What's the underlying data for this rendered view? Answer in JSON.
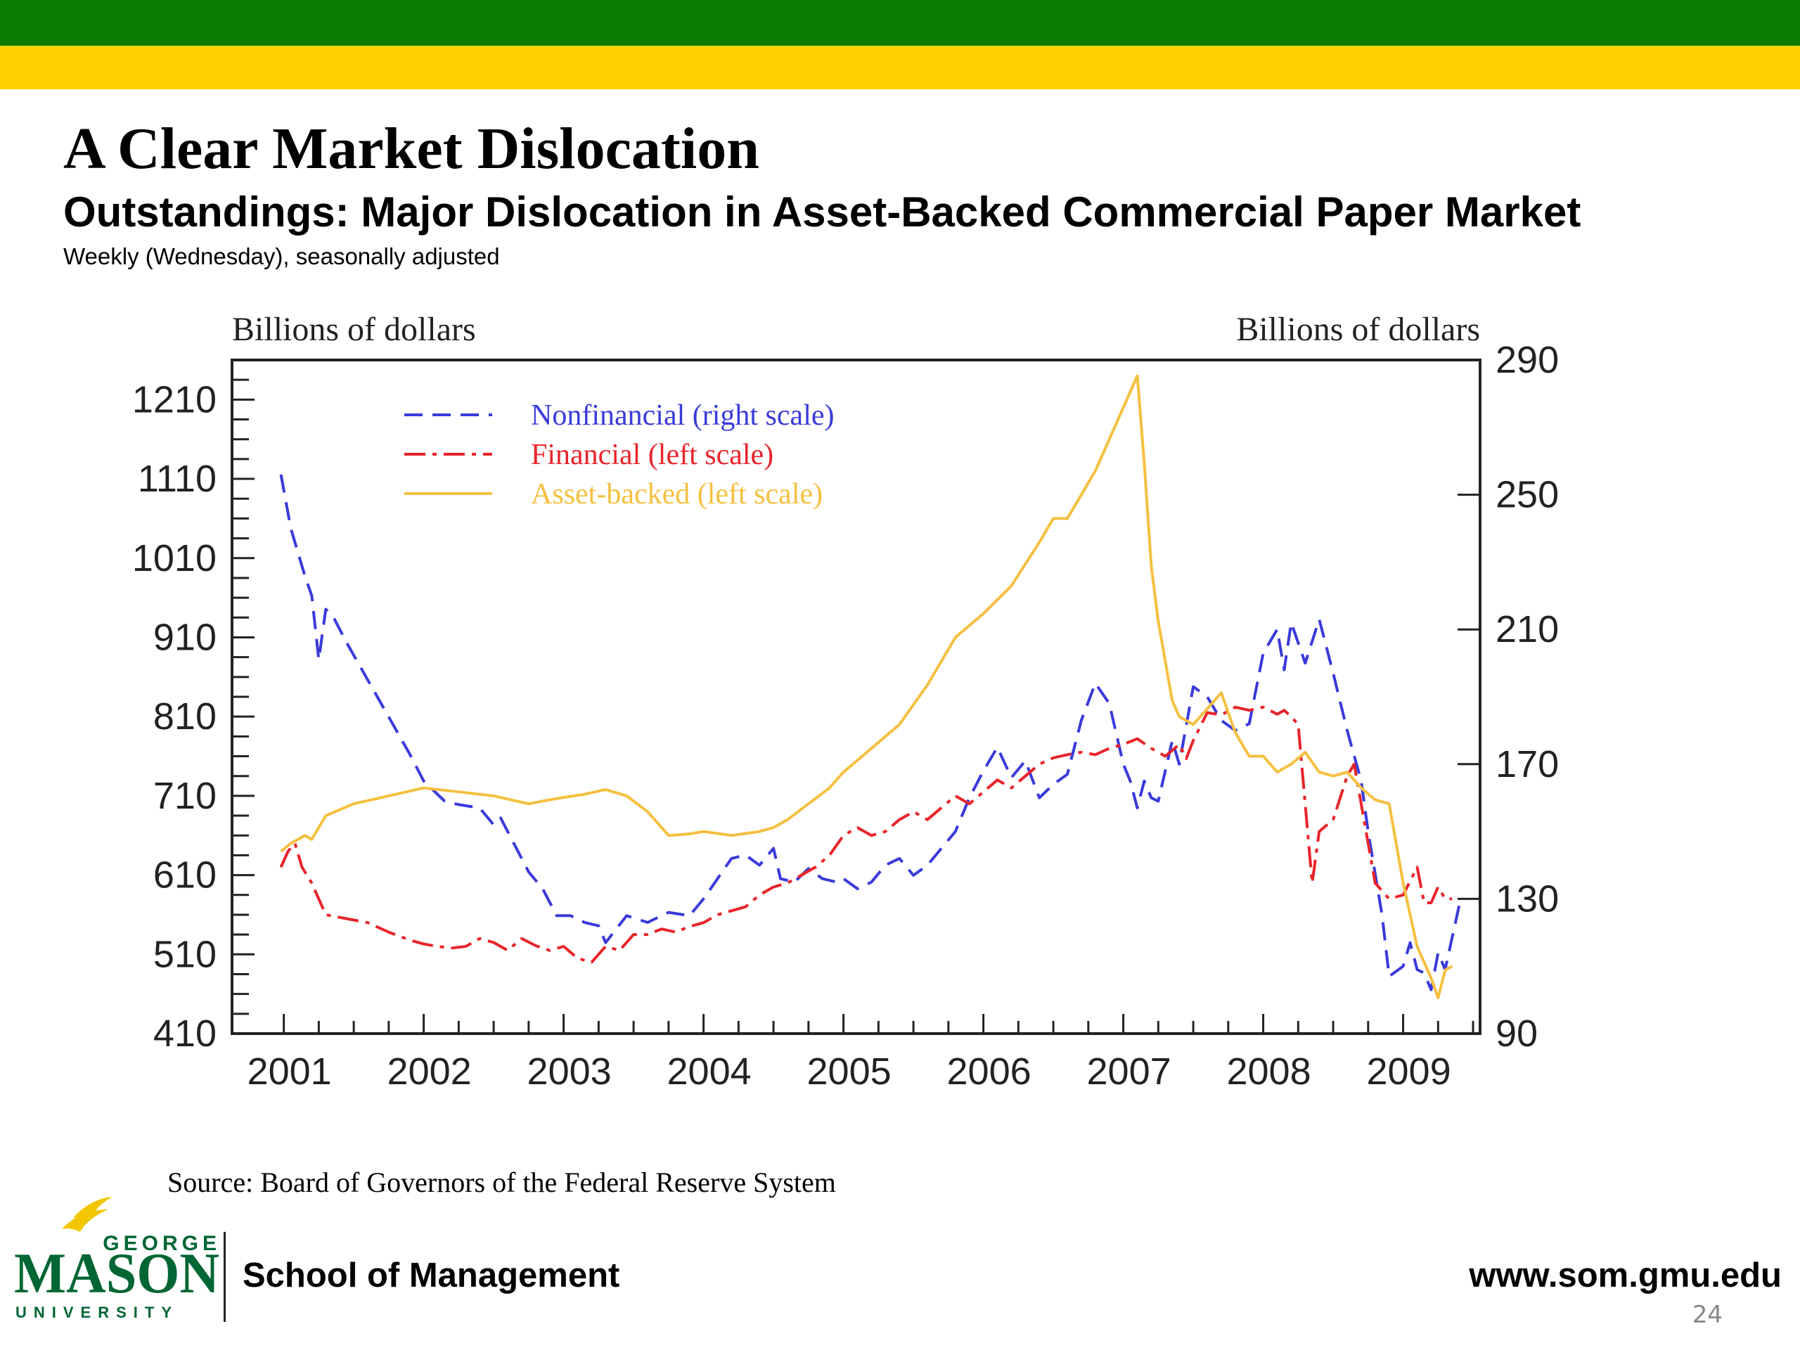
{
  "slide": {
    "title": "A Clear Market Dislocation",
    "source": "Source: Board of Governors of the Federal Reserve System",
    "school": "School of Management",
    "website": "www.som.gmu.edu",
    "page_number": "24",
    "logo": {
      "top": "GEORGE",
      "main": "MASON",
      "bottom": "UNIVERSITY"
    },
    "colors": {
      "band_green": "#0b7d03",
      "band_gold": "#ffd200",
      "logo_green": "#006633",
      "logo_gold": "#f2c600"
    }
  },
  "chart_data": {
    "type": "line",
    "title": "Outstandings: Major Dislocation in Asset-Backed Commercial Paper Market",
    "subtitle": "Weekly (Wednesday), seasonally adjusted",
    "ylabel_left": "Billions of dollars",
    "ylabel_right": "Billions of dollars",
    "x_ticks": [
      "2001",
      "2002",
      "2003",
      "2004",
      "2005",
      "2006",
      "2007",
      "2008",
      "2009"
    ],
    "xlim": [
      2000.63,
      2009.55
    ],
    "ylim_left": [
      410,
      1260
    ],
    "ylim_right": [
      90,
      290
    ],
    "yticks_left": [
      410,
      510,
      610,
      710,
      810,
      910,
      1010,
      1110,
      1210
    ],
    "yticks_right": [
      90,
      130,
      170,
      210,
      250,
      290
    ],
    "legend": {
      "position": "top-left",
      "entries": [
        {
          "label": "Nonfinancial (right scale)",
          "color": "#3a3adb",
          "dash": "dashed"
        },
        {
          "label": "Financial (left scale)",
          "color": "#e8242a",
          "dash": "dash-dot"
        },
        {
          "label": "Asset-backed (left scale)",
          "color": "#f5c040",
          "dash": "solid"
        }
      ]
    },
    "series": [
      {
        "name": "Nonfinancial (right scale)",
        "axis": "right",
        "color": "#3a3adb",
        "dash": "dashed",
        "x": [
          2000.98,
          2001.05,
          2001.15,
          2001.2,
          2001.25,
          2001.3,
          2001.35,
          2001.45,
          2001.6,
          2001.75,
          2001.9,
          2002.0,
          2002.15,
          2002.25,
          2002.4,
          2002.5,
          2002.55,
          2002.65,
          2002.75,
          2002.85,
          2002.95,
          2003.05,
          2003.15,
          2003.25,
          2003.3,
          2003.45,
          2003.6,
          2003.75,
          2003.9,
          2004.0,
          2004.1,
          2004.2,
          2004.3,
          2004.4,
          2004.5,
          2004.55,
          2004.65,
          2004.75,
          2004.85,
          2004.95,
          2005.0,
          2005.1,
          2005.2,
          2005.3,
          2005.4,
          2005.5,
          2005.6,
          2005.7,
          2005.8,
          2005.9,
          2006.0,
          2006.1,
          2006.2,
          2006.3,
          2006.4,
          2006.5,
          2006.6,
          2006.7,
          2006.8,
          2006.9,
          2007.0,
          2007.05,
          2007.1,
          2007.15,
          2007.2,
          2007.25,
          2007.35,
          2007.4,
          2007.5,
          2007.6,
          2007.7,
          2007.8,
          2007.9,
          2008.0,
          2008.1,
          2008.15,
          2008.2,
          2008.3,
          2008.4,
          2008.5,
          2008.6,
          2008.7,
          2008.75,
          2008.85,
          2008.9,
          2009.0,
          2009.05,
          2009.1,
          2009.15,
          2009.2,
          2009.25,
          2009.3,
          2009.4
        ],
        "y": [
          256,
          240,
          226,
          220,
          201,
          216,
          214,
          206,
          195,
          184,
          173,
          165,
          159,
          158,
          157,
          152,
          154,
          146,
          138,
          133,
          125,
          125,
          123,
          122,
          117,
          125,
          123,
          126,
          125,
          130,
          136,
          142,
          143,
          140,
          145,
          136,
          135,
          139,
          136,
          135,
          136,
          133,
          135,
          140,
          142,
          137,
          140,
          145,
          150,
          160,
          168,
          175,
          166,
          171,
          160,
          164,
          167,
          183,
          194,
          188,
          170,
          165,
          157,
          165,
          160,
          159,
          177,
          170,
          193,
          190,
          183,
          180,
          182,
          203,
          210,
          198,
          212,
          200,
          213,
          197,
          180,
          165,
          150,
          125,
          107,
          110,
          117,
          109,
          108,
          103,
          114,
          109,
          128
        ]
      },
      {
        "name": "Financial (left scale)",
        "axis": "left",
        "color": "#e8242a",
        "dash": "dash-dot",
        "x": [
          2000.98,
          2001.03,
          2001.08,
          2001.13,
          2001.2,
          2001.3,
          2001.45,
          2001.6,
          2001.75,
          2001.9,
          2002.0,
          2002.1,
          2002.2,
          2002.3,
          2002.4,
          2002.5,
          2002.6,
          2002.7,
          2002.8,
          2002.9,
          2003.0,
          2003.1,
          2003.2,
          2003.3,
          2003.4,
          2003.5,
          2003.6,
          2003.7,
          2003.8,
          2003.9,
          2004.0,
          2004.1,
          2004.2,
          2004.3,
          2004.4,
          2004.5,
          2004.6,
          2004.7,
          2004.8,
          2004.9,
          2005.0,
          2005.1,
          2005.2,
          2005.3,
          2005.4,
          2005.5,
          2005.6,
          2005.7,
          2005.8,
          2005.9,
          2006.0,
          2006.1,
          2006.2,
          2006.3,
          2006.4,
          2006.5,
          2006.6,
          2006.7,
          2006.8,
          2006.9,
          2007.0,
          2007.1,
          2007.2,
          2007.3,
          2007.4,
          2007.45,
          2007.5,
          2007.6,
          2007.7,
          2007.8,
          2007.9,
          2008.0,
          2008.1,
          2008.15,
          2008.2,
          2008.25,
          2008.35,
          2008.4,
          2008.5,
          2008.6,
          2008.65,
          2008.7,
          2008.8,
          2008.9,
          2009.0,
          2009.1,
          2009.15,
          2009.2,
          2009.25,
          2009.3,
          2009.35
        ],
        "y": [
          620,
          640,
          650,
          620,
          600,
          560,
          555,
          550,
          538,
          528,
          523,
          520,
          518,
          520,
          530,
          525,
          515,
          530,
          521,
          515,
          520,
          505,
          500,
          520,
          515,
          535,
          535,
          542,
          538,
          545,
          550,
          560,
          565,
          570,
          585,
          595,
          600,
          610,
          620,
          635,
          660,
          670,
          660,
          665,
          680,
          690,
          680,
          695,
          710,
          700,
          715,
          730,
          720,
          735,
          750,
          758,
          762,
          765,
          762,
          770,
          775,
          782,
          770,
          760,
          775,
          757,
          780,
          815,
          812,
          822,
          818,
          822,
          813,
          818,
          810,
          800,
          600,
          665,
          680,
          735,
          750,
          700,
          600,
          580,
          585,
          620,
          575,
          575,
          595,
          580,
          580
        ]
      },
      {
        "name": "Asset-backed (left scale)",
        "axis": "left",
        "color": "#f5c040",
        "dash": "solid",
        "x": [
          2000.98,
          2001.05,
          2001.15,
          2001.2,
          2001.3,
          2001.5,
          2001.75,
          2002.0,
          2002.25,
          2002.5,
          2002.75,
          2002.9,
          2003.0,
          2003.15,
          2003.3,
          2003.45,
          2003.6,
          2003.75,
          2003.9,
          2004.0,
          2004.2,
          2004.4,
          2004.5,
          2004.6,
          2004.75,
          2004.9,
          2005.0,
          2005.2,
          2005.4,
          2005.6,
          2005.8,
          2006.0,
          2006.2,
          2006.4,
          2006.5,
          2006.6,
          2006.8,
          2007.0,
          2007.1,
          2007.15,
          2007.2,
          2007.25,
          2007.3,
          2007.35,
          2007.4,
          2007.45,
          2007.5,
          2007.6,
          2007.7,
          2007.8,
          2007.9,
          2008.0,
          2008.1,
          2008.2,
          2008.3,
          2008.4,
          2008.5,
          2008.6,
          2008.7,
          2008.8,
          2008.9,
          2009.0,
          2009.1,
          2009.2,
          2009.25,
          2009.3,
          2009.35
        ],
        "y": [
          640,
          650,
          660,
          655,
          685,
          700,
          710,
          720,
          715,
          710,
          700,
          705,
          708,
          712,
          718,
          710,
          690,
          660,
          662,
          665,
          660,
          665,
          670,
          680,
          700,
          720,
          740,
          770,
          800,
          850,
          910,
          940,
          975,
          1030,
          1060,
          1060,
          1120,
          1200,
          1240,
          1130,
          1000,
          930,
          880,
          830,
          810,
          805,
          800,
          820,
          840,
          790,
          760,
          760,
          740,
          750,
          765,
          740,
          735,
          740,
          720,
          705,
          700,
          600,
          520,
          480,
          455,
          490,
          495
        ]
      }
    ]
  }
}
